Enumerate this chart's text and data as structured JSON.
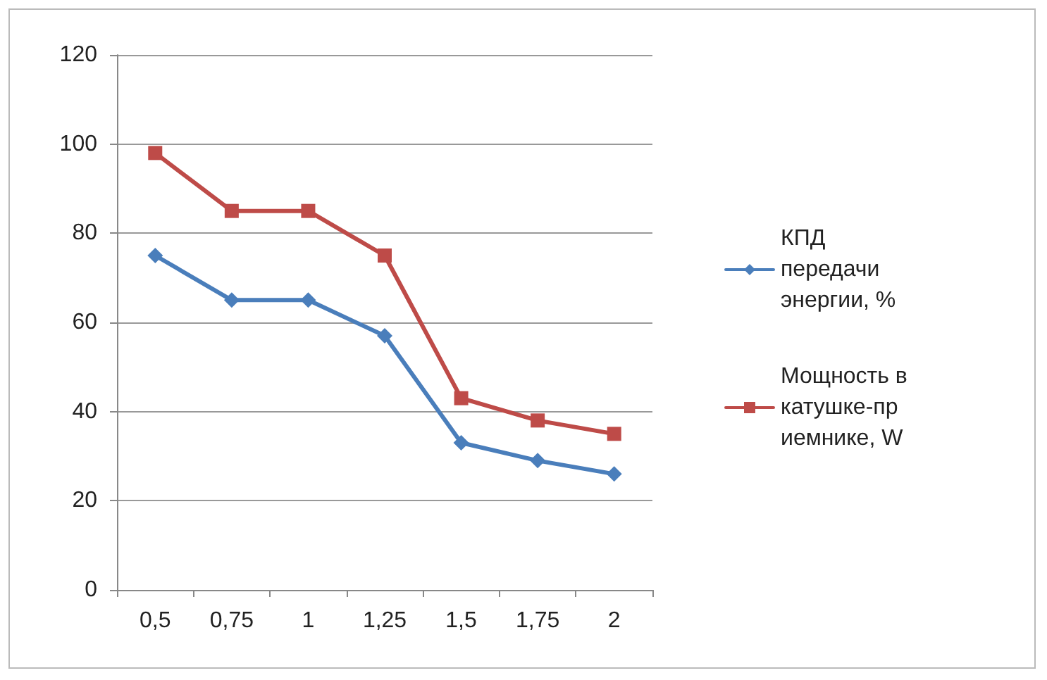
{
  "chart_data": {
    "type": "line",
    "categories": [
      "0,5",
      "0,75",
      "1",
      "1,25",
      "1,5",
      "1,75",
      "2"
    ],
    "series": [
      {
        "name": "КПД передачи энергии, %",
        "color": "#4a7ebb",
        "marker": "diamond",
        "values": [
          75,
          65,
          65,
          57,
          33,
          29,
          26
        ]
      },
      {
        "name": "Мощность в катушке-приемнике, W",
        "color": "#be4b48",
        "marker": "square",
        "values": [
          98,
          85,
          85,
          75,
          43,
          38,
          35
        ]
      }
    ],
    "ylim": [
      0,
      120
    ],
    "yticks": [
      0,
      20,
      40,
      60,
      80,
      100,
      120
    ],
    "grid": "y",
    "legend": "right",
    "line_style": "solid"
  }
}
